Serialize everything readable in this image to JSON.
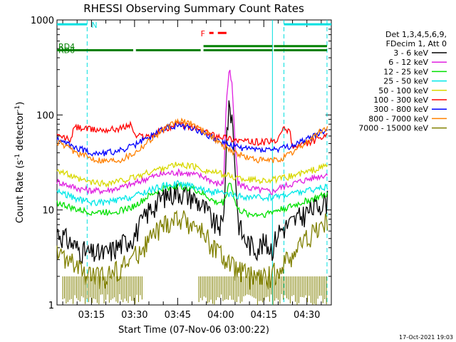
{
  "chart_data": {
    "type": "line",
    "title": "RHESSI Observing Summary Count Rates",
    "xlabel": "Start Time (07-Nov-06 03:00:22)",
    "ylabel": "Count Rate (s",
    "ylabel_sup": "-1",
    "ylabel_mid": " detector",
    "ylabel_end": ")",
    "y_scale": "log",
    "ylim": [
      1,
      1000
    ],
    "xlim_minutes": [
      3.0,
      98.5
    ],
    "y_ticks": [
      {
        "value": 1,
        "label": "1"
      },
      {
        "value": 10,
        "label": "10"
      },
      {
        "value": 100,
        "label": "100"
      },
      {
        "value": 1000,
        "label": "1000"
      }
    ],
    "x_ticks": [
      {
        "minute": 15,
        "label": "03:15"
      },
      {
        "minute": 30,
        "label": "03:30"
      },
      {
        "minute": 45,
        "label": "03:45"
      },
      {
        "minute": 60,
        "label": "04:00"
      },
      {
        "minute": 75,
        "label": "04:15"
      },
      {
        "minute": 90,
        "label": "04:30"
      }
    ],
    "legend_header": [
      "Det 1,3,4,5,6,9,",
      "FDecim 1, Att 0"
    ],
    "series": [
      {
        "name": "3 - 6 keV",
        "color": "#000000",
        "points": [
          [
            3,
            6
          ],
          [
            10,
            4
          ],
          [
            14,
            3.5
          ],
          [
            20,
            3.5
          ],
          [
            26,
            4.5
          ],
          [
            30,
            5.5
          ],
          [
            35,
            10
          ],
          [
            40,
            14
          ],
          [
            45,
            16
          ],
          [
            50,
            14
          ],
          [
            55,
            10
          ],
          [
            58,
            7
          ],
          [
            61,
            7
          ],
          [
            62,
            60
          ],
          [
            63,
            125
          ],
          [
            64,
            95
          ],
          [
            65,
            30
          ],
          [
            66,
            8
          ],
          [
            68,
            5
          ],
          [
            72,
            4
          ],
          [
            75,
            4.5
          ],
          [
            78,
            4
          ],
          [
            80,
            6
          ],
          [
            85,
            7.5
          ],
          [
            90,
            9.5
          ],
          [
            95,
            12
          ],
          [
            98,
            13
          ]
        ]
      },
      {
        "name": "6 - 12 keV",
        "color": "#e020e0",
        "points": [
          [
            3,
            20
          ],
          [
            10,
            17
          ],
          [
            15,
            16
          ],
          [
            20,
            16
          ],
          [
            26,
            17.5
          ],
          [
            30,
            19
          ],
          [
            35,
            22
          ],
          [
            40,
            24
          ],
          [
            45,
            25
          ],
          [
            50,
            24
          ],
          [
            55,
            22
          ],
          [
            58,
            19
          ],
          [
            61,
            19
          ],
          [
            62,
            150
          ],
          [
            63,
            300
          ],
          [
            64,
            200
          ],
          [
            65,
            50
          ],
          [
            66,
            19
          ],
          [
            70,
            17
          ],
          [
            75,
            16
          ],
          [
            78,
            15.5
          ],
          [
            80,
            17
          ],
          [
            85,
            19
          ],
          [
            90,
            21
          ],
          [
            95,
            23
          ],
          [
            98,
            24
          ]
        ]
      },
      {
        "name": "12 - 25 keV",
        "color": "#00e000",
        "points": [
          [
            3,
            12
          ],
          [
            10,
            10
          ],
          [
            15,
            9.5
          ],
          [
            20,
            9.5
          ],
          [
            26,
            10
          ],
          [
            30,
            11
          ],
          [
            35,
            14
          ],
          [
            40,
            17
          ],
          [
            45,
            18
          ],
          [
            50,
            17
          ],
          [
            55,
            14
          ],
          [
            58,
            12
          ],
          [
            61,
            12
          ],
          [
            62,
            15
          ],
          [
            63,
            20
          ],
          [
            64,
            17
          ],
          [
            65,
            12
          ],
          [
            66,
            10
          ],
          [
            70,
            9
          ],
          [
            75,
            9
          ],
          [
            80,
            10
          ],
          [
            85,
            11
          ],
          [
            90,
            12.5
          ],
          [
            95,
            14
          ],
          [
            98,
            15
          ]
        ]
      },
      {
        "name": "25 - 50 keV",
        "color": "#00e8e8",
        "points": [
          [
            3,
            16
          ],
          [
            10,
            13
          ],
          [
            15,
            12
          ],
          [
            20,
            12
          ],
          [
            26,
            13
          ],
          [
            30,
            14
          ],
          [
            35,
            16
          ],
          [
            40,
            18
          ],
          [
            45,
            19
          ],
          [
            50,
            18
          ],
          [
            55,
            16
          ],
          [
            60,
            15
          ],
          [
            65,
            14
          ],
          [
            70,
            13.5
          ],
          [
            75,
            13.5
          ],
          [
            80,
            14
          ],
          [
            85,
            15
          ],
          [
            90,
            16
          ],
          [
            95,
            17
          ],
          [
            98,
            17.5
          ]
        ]
      },
      {
        "name": "50 - 100 keV",
        "color": "#d8d800",
        "points": [
          [
            3,
            27
          ],
          [
            10,
            21
          ],
          [
            15,
            19.5
          ],
          [
            20,
            19
          ],
          [
            26,
            20.5
          ],
          [
            30,
            22
          ],
          [
            35,
            25
          ],
          [
            40,
            28
          ],
          [
            45,
            30
          ],
          [
            50,
            29
          ],
          [
            55,
            26
          ],
          [
            60,
            24
          ],
          [
            65,
            22
          ],
          [
            70,
            21
          ],
          [
            75,
            20.5
          ],
          [
            80,
            21
          ],
          [
            85,
            23
          ],
          [
            90,
            25
          ],
          [
            95,
            28
          ],
          [
            98,
            30
          ]
        ]
      },
      {
        "name": "100 - 300 keV",
        "color": "#ff0000",
        "points": [
          [
            3,
            60
          ],
          [
            8,
            55
          ],
          [
            9,
            75
          ],
          [
            15,
            70
          ],
          [
            20,
            70
          ],
          [
            25,
            72
          ],
          [
            29,
            80
          ],
          [
            30,
            60
          ],
          [
            35,
            60
          ],
          [
            40,
            70
          ],
          [
            45,
            80
          ],
          [
            50,
            75
          ],
          [
            55,
            65
          ],
          [
            60,
            60
          ],
          [
            65,
            55
          ],
          [
            70,
            52
          ],
          [
            75,
            52
          ],
          [
            80,
            53
          ],
          [
            81,
            70
          ],
          [
            84,
            70
          ],
          [
            85,
            45
          ],
          [
            90,
            50
          ],
          [
            95,
            57
          ],
          [
            98,
            60
          ]
        ]
      },
      {
        "name": "300 - 800 keV",
        "color": "#0000ff",
        "points": [
          [
            3,
            55
          ],
          [
            10,
            45
          ],
          [
            15,
            40
          ],
          [
            20,
            40
          ],
          [
            25,
            42
          ],
          [
            30,
            48
          ],
          [
            35,
            58
          ],
          [
            40,
            72
          ],
          [
            45,
            78
          ],
          [
            50,
            74
          ],
          [
            55,
            63
          ],
          [
            60,
            52
          ],
          [
            65,
            46
          ],
          [
            70,
            44
          ],
          [
            75,
            43
          ],
          [
            80,
            43.5
          ],
          [
            85,
            47
          ],
          [
            90,
            55
          ],
          [
            95,
            66
          ],
          [
            98,
            72
          ]
        ]
      },
      {
        "name": "800 - 7000 keV",
        "color": "#ff8000",
        "points": [
          [
            3,
            52
          ],
          [
            10,
            40
          ],
          [
            15,
            35
          ],
          [
            20,
            33
          ],
          [
            25,
            34
          ],
          [
            30,
            40
          ],
          [
            35,
            54
          ],
          [
            40,
            70
          ],
          [
            45,
            86
          ],
          [
            50,
            82
          ],
          [
            55,
            65
          ],
          [
            60,
            50
          ],
          [
            65,
            40
          ],
          [
            70,
            35
          ],
          [
            75,
            33
          ],
          [
            80,
            33.5
          ],
          [
            85,
            40
          ],
          [
            90,
            52
          ],
          [
            95,
            68
          ],
          [
            98,
            75
          ]
        ]
      },
      {
        "name": "7000 - 15000 keV",
        "color": "#808000",
        "points": [
          [
            3,
            3.5
          ],
          [
            8,
            2.8
          ],
          [
            12,
            2.2
          ],
          [
            16,
            2
          ],
          [
            20,
            2
          ],
          [
            25,
            2.5
          ],
          [
            30,
            3.2
          ],
          [
            35,
            4.8
          ],
          [
            40,
            6.8
          ],
          [
            45,
            8.2
          ],
          [
            50,
            7.2
          ],
          [
            55,
            5.3
          ],
          [
            60,
            3.3
          ],
          [
            65,
            2.4
          ],
          [
            70,
            2
          ],
          [
            75,
            1.9
          ],
          [
            80,
            2.3
          ],
          [
            85,
            3.5
          ],
          [
            90,
            5.2
          ],
          [
            95,
            7
          ],
          [
            98,
            7.6
          ]
        ]
      }
    ],
    "noise_bands": {
      "color": "#808000",
      "y_range": [
        1,
        2
      ],
      "label": ""
    },
    "attenuator_bars": [
      {
        "label": "RD0",
        "color": "#008000",
        "y": 480,
        "segments": [
          [
            3,
            29.5
          ],
          [
            30.5,
            53
          ]
        ]
      },
      {
        "label": "RD4",
        "color": "#008000",
        "y": 530,
        "segments": [
          [
            54,
            78
          ],
          [
            78.5,
            97
          ]
        ]
      },
      {
        "label": "",
        "color": "#008000",
        "y": 480,
        "segments": [
          [
            3,
            29.5
          ],
          [
            30.5,
            53
          ],
          [
            54,
            78
          ],
          [
            78.5,
            97
          ]
        ]
      }
    ],
    "flags": [
      {
        "label": "N",
        "color": "#00e0e0",
        "level": 900,
        "segments": [
          [
            3,
            13.5
          ],
          [
            82,
            98.5
          ]
        ]
      },
      {
        "label": "F",
        "color": "#ff0000",
        "level": 730,
        "segments": [
          [
            56,
            57.5
          ],
          [
            59,
            62
          ]
        ]
      }
    ],
    "vertical_lines": [
      {
        "minute": 13.5,
        "color": "#00e0e0",
        "style": "dashed"
      },
      {
        "minute": 78,
        "color": "#00e0e0",
        "style": "solid"
      },
      {
        "minute": 82,
        "color": "#00e0e0",
        "style": "dashed"
      },
      {
        "minute": 97,
        "color": "#00e0e0",
        "style": "dashed"
      }
    ],
    "footer": "17-Oct-2021 19:03"
  }
}
